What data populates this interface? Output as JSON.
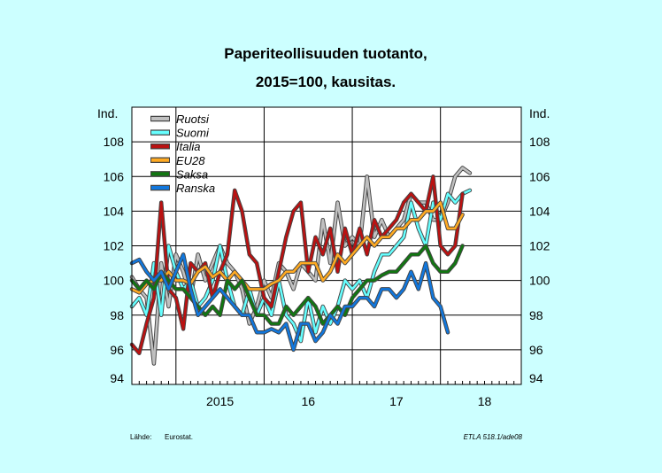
{
  "chart_data": {
    "type": "line",
    "title_lines": [
      "Paperiteollisuuden tuotanto,",
      "2015=100, kausitas."
    ],
    "y_unit_left": "Ind.",
    "y_unit_right": "Ind.",
    "ylim": [
      94,
      110
    ],
    "y_ticks": [
      94,
      96,
      98,
      100,
      102,
      104,
      106,
      108
    ],
    "x_start": "2014-07",
    "x_end": "2018-12",
    "x_labels": [
      {
        "label": "2015",
        "at": "2015-07"
      },
      {
        "label": "16",
        "at": "2016-07"
      },
      {
        "label": "17",
        "at": "2017-07"
      },
      {
        "label": "18",
        "at": "2018-07"
      }
    ],
    "grid": true,
    "legend_position": "top-left",
    "series_start": "2014-07",
    "series": [
      {
        "name": "Ruotsi",
        "color": "#c0c0c0",
        "values": [
          100.2,
          99.5,
          99.0,
          95.2,
          101.0,
          98.5,
          101.5,
          100.5,
          99.0,
          101.5,
          100.0,
          101.0,
          102.0,
          101.0,
          100.5,
          99.5,
          97.5,
          98.5,
          100.0,
          99.0,
          101.0,
          100.5,
          99.5,
          101.0,
          100.5,
          100.0,
          103.5,
          101.0,
          104.5,
          102.0,
          102.5,
          102.0,
          106.0,
          102.5,
          103.5,
          102.5,
          103.0,
          103.5,
          105.0,
          104.5,
          104.5,
          103.5,
          103.5,
          104.5,
          106.0,
          106.5,
          106.2,
          null,
          null,
          null,
          null,
          null,
          null,
          null
        ]
      },
      {
        "name": "Suomi",
        "color": "#66ffff",
        "values": [
          98.5,
          99.0,
          98.0,
          101.0,
          98.0,
          102.0,
          100.5,
          99.5,
          100.0,
          98.5,
          99.0,
          100.0,
          102.0,
          100.0,
          98.5,
          98.0,
          99.5,
          98.0,
          99.0,
          98.0,
          100.0,
          98.0,
          97.5,
          96.5,
          99.0,
          97.0,
          98.5,
          97.5,
          98.5,
          100.0,
          99.5,
          100.0,
          99.0,
          100.5,
          101.5,
          101.5,
          102.0,
          102.5,
          104.5,
          103.0,
          102.0,
          104.5,
          103.5,
          105.0,
          104.5,
          105.0,
          105.2,
          null,
          null,
          null,
          null,
          null,
          null,
          null
        ]
      },
      {
        "name": "Italia",
        "color": "#bb1111",
        "values": [
          96.3,
          95.8,
          97.5,
          99.0,
          104.5,
          99.5,
          99.0,
          97.2,
          101.0,
          100.5,
          101.0,
          99.0,
          100.5,
          101.5,
          105.2,
          104.0,
          101.5,
          101.0,
          99.0,
          98.5,
          100.5,
          102.5,
          104.0,
          104.5,
          100.5,
          102.5,
          101.5,
          103.0,
          100.5,
          103.0,
          101.5,
          103.0,
          101.5,
          103.5,
          102.5,
          103.0,
          103.5,
          104.5,
          105.0,
          104.5,
          104.0,
          106.0,
          102.0,
          101.5,
          102.0,
          105.0,
          null,
          null,
          null,
          null,
          null,
          null,
          null,
          null
        ]
      },
      {
        "name": "EU28",
        "color": "#ffaa22",
        "values": [
          99.5,
          99.3,
          99.8,
          100.0,
          100.0,
          100.5,
          100.0,
          100.0,
          99.8,
          100.5,
          100.8,
          100.2,
          100.5,
          100.0,
          100.5,
          100.0,
          99.5,
          99.5,
          99.5,
          99.8,
          100.0,
          100.5,
          100.5,
          101.0,
          101.0,
          101.0,
          100.0,
          100.5,
          101.5,
          101.0,
          101.5,
          102.0,
          102.5,
          102.0,
          102.5,
          102.5,
          103.0,
          103.0,
          103.5,
          103.5,
          104.0,
          104.0,
          104.5,
          103.0,
          103.0,
          103.8,
          null,
          null,
          null,
          null,
          null,
          null,
          null,
          null
        ]
      },
      {
        "name": "Saksa",
        "color": "#117711",
        "values": [
          100.0,
          99.5,
          100.0,
          99.5,
          100.5,
          100.0,
          99.5,
          99.5,
          99.0,
          98.5,
          98.0,
          98.5,
          98.0,
          100.0,
          99.5,
          100.0,
          99.0,
          98.0,
          98.0,
          97.5,
          97.5,
          98.5,
          98.0,
          98.5,
          99.0,
          98.5,
          97.5,
          98.0,
          98.5,
          98.0,
          99.0,
          99.5,
          100.0,
          100.0,
          100.3,
          100.5,
          100.5,
          101.0,
          101.5,
          101.5,
          102.0,
          101.0,
          100.5,
          100.5,
          101.0,
          102.0,
          null,
          null,
          null,
          null,
          null,
          null,
          null,
          null
        ]
      },
      {
        "name": "Ranska",
        "color": "#1177dd",
        "values": [
          101.0,
          101.2,
          100.5,
          100.0,
          100.5,
          99.5,
          100.5,
          101.5,
          99.5,
          98.0,
          98.5,
          99.0,
          99.5,
          99.0,
          98.5,
          98.0,
          98.0,
          97.0,
          97.0,
          97.2,
          97.0,
          97.5,
          96.0,
          97.5,
          97.5,
          96.5,
          97.0,
          98.0,
          97.5,
          98.5,
          98.5,
          99.0,
          99.0,
          98.5,
          99.5,
          99.5,
          99.0,
          99.5,
          100.5,
          99.5,
          101.0,
          99.0,
          98.5,
          97.0,
          null,
          null,
          null,
          null,
          null,
          null,
          null,
          null,
          null,
          null
        ]
      }
    ]
  },
  "footer": {
    "source_label": "Lähde:",
    "source_value": "Eurostat.",
    "code": "ETLA 518.1/ade08"
  }
}
